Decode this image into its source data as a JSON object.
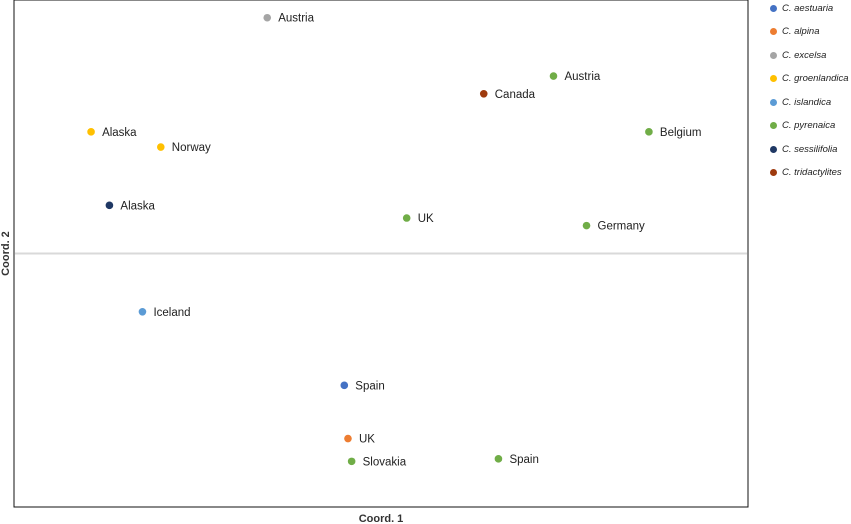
{
  "chart_data": {
    "type": "scatter",
    "title": "",
    "xlabel": "Coord. 1",
    "ylabel": "Coord. 2",
    "xlim": [
      -1.0,
      1.0
    ],
    "ylim": [
      -1.0,
      1.0
    ],
    "zero_line_y": 0,
    "grid": false,
    "legend_position": "right",
    "series": [
      {
        "name": "C. aestuaria",
        "color": "#4472C4",
        "points": [
          {
            "x": -0.1,
            "y": -0.52,
            "label": "Spain"
          }
        ]
      },
      {
        "name": "C. alpina",
        "color": "#ED7D31",
        "points": [
          {
            "x": -0.09,
            "y": -0.73,
            "label": "UK"
          }
        ]
      },
      {
        "name": "C. excelsa",
        "color": "#A5A5A5",
        "points": [
          {
            "x": -0.31,
            "y": 0.93,
            "label": "Austria"
          }
        ]
      },
      {
        "name": "C. groenlandica",
        "color": "#FFC000",
        "points": [
          {
            "x": -0.79,
            "y": 0.48,
            "label": "Alaska"
          },
          {
            "x": -0.6,
            "y": 0.42,
            "label": "Norway"
          }
        ]
      },
      {
        "name": "C. islandica",
        "color": "#5B9BD5",
        "points": [
          {
            "x": -0.65,
            "y": -0.23,
            "label": "Iceland"
          }
        ]
      },
      {
        "name": "C. pyrenaica",
        "color": "#70AD47",
        "points": [
          {
            "x": 0.47,
            "y": 0.7,
            "label": "Austria"
          },
          {
            "x": 0.73,
            "y": 0.48,
            "label": "Belgium"
          },
          {
            "x": 0.07,
            "y": 0.14,
            "label": "UK"
          },
          {
            "x": 0.56,
            "y": 0.11,
            "label": "Germany"
          },
          {
            "x": -0.08,
            "y": -0.82,
            "label": "Slovakia"
          },
          {
            "x": 0.32,
            "y": -0.81,
            "label": "Spain"
          }
        ]
      },
      {
        "name": "C. sessilifolia",
        "color": "#1F3864",
        "points": [
          {
            "x": -0.74,
            "y": 0.19,
            "label": "Alaska"
          }
        ]
      },
      {
        "name": "C. tridactylites",
        "color": "#9E3A0E",
        "points": [
          {
            "x": 0.28,
            "y": 0.63,
            "label": "Canada"
          }
        ]
      }
    ]
  }
}
